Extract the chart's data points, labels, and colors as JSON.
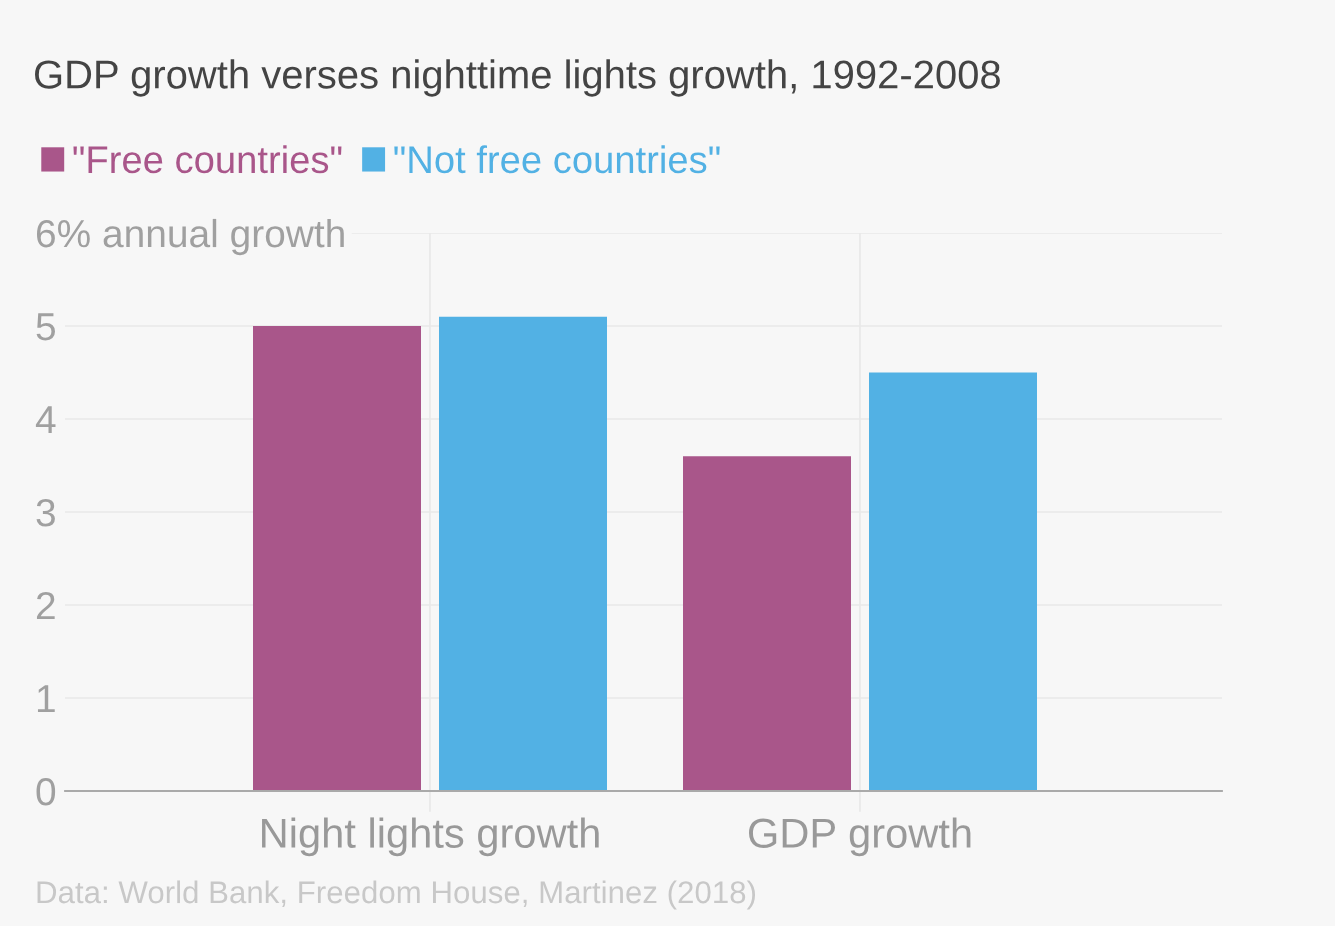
{
  "chart_data": {
    "type": "bar",
    "title": "GDP growth verses nighttime lights growth, 1992-2008",
    "categories": [
      "Night lights growth",
      "GDP growth"
    ],
    "series": [
      {
        "name": "\"Free countries\"",
        "color": "#a9568a",
        "values": [
          5.0,
          3.6
        ]
      },
      {
        "name": "\"Not free countries\"",
        "color": "#52b1e4",
        "values": [
          5.1,
          4.5
        ]
      }
    ],
    "ylim": [
      0,
      6
    ],
    "yticks": [
      0,
      1,
      2,
      3,
      4,
      5,
      {
        "value": 6,
        "label": "6% annual growth"
      }
    ],
    "grid": true,
    "legend": "top left",
    "annotations": [
      "Data: World Bank, Freedom House, Martinez (2018)"
    ]
  }
}
